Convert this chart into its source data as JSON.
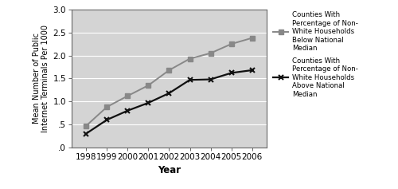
{
  "years": [
    1998,
    1999,
    2000,
    2001,
    2002,
    2003,
    2004,
    2005,
    2006
  ],
  "below_median": [
    0.47,
    0.88,
    1.12,
    1.35,
    1.68,
    1.93,
    2.05,
    2.25,
    2.38
  ],
  "above_median": [
    0.3,
    0.6,
    0.8,
    0.97,
    1.18,
    1.47,
    1.48,
    1.62,
    1.68
  ],
  "below_color": "#888888",
  "above_color": "#111111",
  "ylabel": "Mean Number of Public\nInternet Terminals Per 1000",
  "xlabel": "Year",
  "ylim": [
    0.0,
    3.0
  ],
  "yticks": [
    0.0,
    0.5,
    1.0,
    1.5,
    2.0,
    2.5,
    3.0
  ],
  "ytick_labels": [
    ".0",
    ".5",
    "1.0",
    "1.5",
    "2.0",
    "2.5",
    "3.0"
  ],
  "legend_below": "Counties With\nPercentage of Non-\nWhite Households\nBelow National\nMedian",
  "legend_above": "Counties With\nPercentage of Non-\nWhite Households\nAbove National\nMedian",
  "plot_bg_color": "#d4d4d4",
  "fig_bg_color": "#ffffff",
  "grid_color": "#ffffff",
  "spine_color": "#666666"
}
